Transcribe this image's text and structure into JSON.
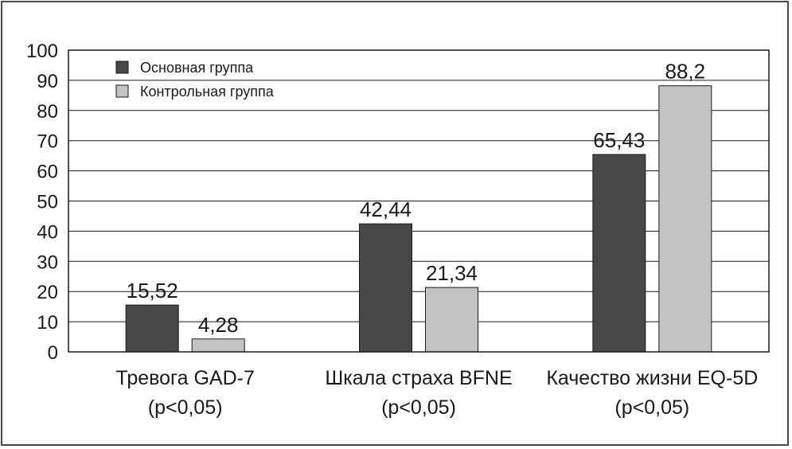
{
  "chart_data": {
    "type": "bar",
    "categories": [
      "Тревога GAD-7",
      "Шкала страха BFNE",
      "Качество жизни EQ-5D"
    ],
    "category_notes": [
      "(p<0,05)",
      "(p<0,05)",
      "(p<0,05)"
    ],
    "series": [
      {
        "name": "Основная группа",
        "values": [
          15.52,
          42.44,
          65.43
        ],
        "labels": [
          "15,52",
          "42,44",
          "65,43"
        ],
        "color": "#474747"
      },
      {
        "name": "Контрольная группа",
        "values": [
          4.28,
          21.34,
          88.2
        ],
        "labels": [
          "4,28",
          "21,34",
          "88,2"
        ],
        "color": "#c3c3c3"
      }
    ],
    "ylim": [
      0,
      100
    ],
    "yticks": [
      0,
      10,
      20,
      30,
      40,
      50,
      60,
      70,
      80,
      90,
      100
    ],
    "grid": true,
    "legend_position": "top-left"
  }
}
